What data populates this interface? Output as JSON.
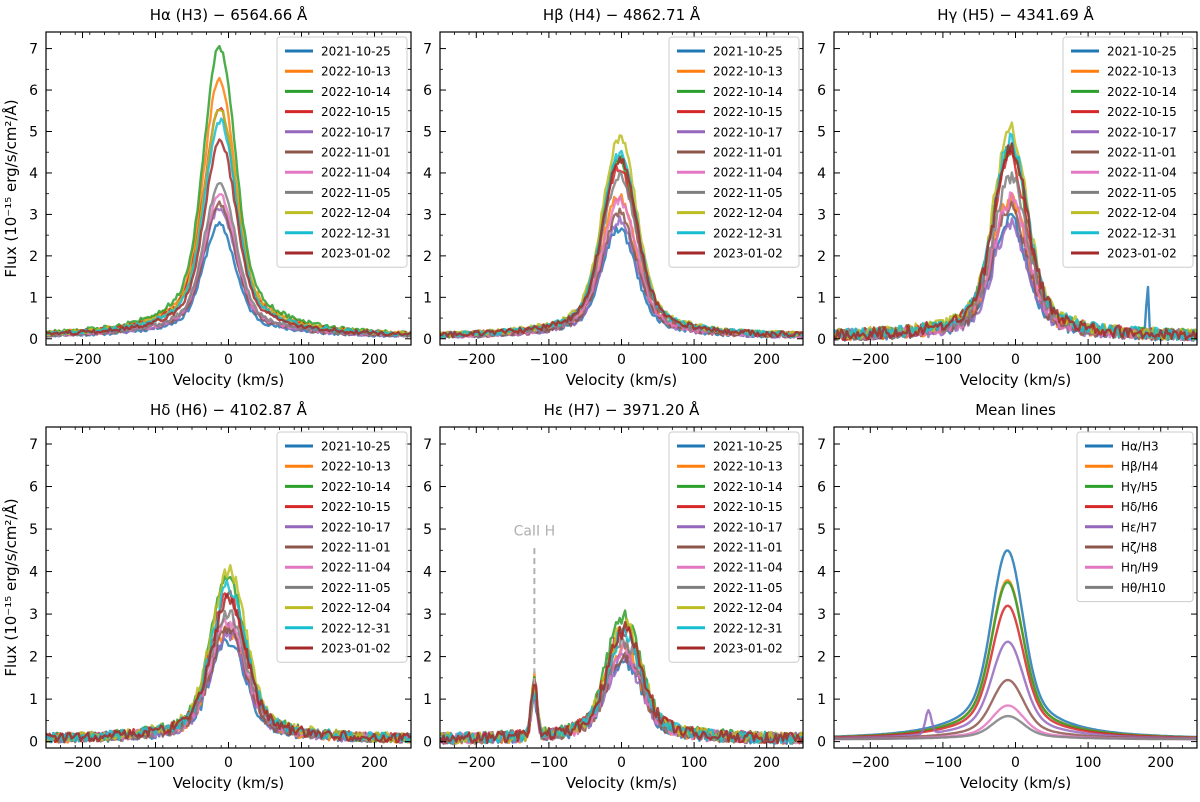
{
  "figure": {
    "xlabel": "Velocity (km/s)",
    "ylabel": "Flux (10⁻¹⁵ erg/s/cm²/Å)"
  },
  "colors": [
    "#1f77b4",
    "#ff7f0e",
    "#2ca02c",
    "#d62728",
    "#9467bd",
    "#8c564b",
    "#e377c2",
    "#7f7f7f",
    "#bcbd22",
    "#17becf",
    "#a52a2a"
  ],
  "chart_data": [
    {
      "type": "line",
      "title": "Hα (H3) − 6564.66 Å",
      "xlim": [
        -250,
        250
      ],
      "ylim": [
        -0.15,
        7.4
      ],
      "xticks": [
        -200,
        -100,
        0,
        100,
        200
      ],
      "yticks": [
        0,
        1,
        2,
        3,
        4,
        5,
        6,
        7
      ],
      "legend": "top-right",
      "legend_labels": [
        "2021-10-25",
        "2022-10-13",
        "2022-10-14",
        "2022-10-15",
        "2022-10-17",
        "2022-11-01",
        "2022-11-04",
        "2022-11-05",
        "2022-12-04",
        "2022-12-31",
        "2023-01-02"
      ],
      "profile": {
        "center": -10,
        "core_width": 20,
        "wing_width": 60,
        "wing_frac": 0.25,
        "noise": 0.04
      },
      "peaks": [
        2.7,
        6.2,
        7.0,
        5.5,
        3.1,
        3.2,
        3.4,
        3.7,
        5.5,
        5.2,
        4.7
      ],
      "series_names": [
        "2021-10-25",
        "2022-10-13",
        "2022-10-14",
        "2022-10-15",
        "2022-10-17",
        "2022-11-01",
        "2022-11-04",
        "2022-11-05",
        "2022-12-04",
        "2022-12-31",
        "2023-01-02"
      ]
    },
    {
      "type": "line",
      "title": "Hβ (H4) − 4862.71 Å",
      "xlim": [
        -250,
        250
      ],
      "ylim": [
        -0.15,
        7.4
      ],
      "xticks": [
        -200,
        -100,
        0,
        100,
        200
      ],
      "yticks": [
        0,
        1,
        2,
        3,
        4,
        5,
        6,
        7
      ],
      "legend": "top-right",
      "legend_labels": [
        "2021-10-25",
        "2022-10-13",
        "2022-10-14",
        "2022-10-15",
        "2022-10-17",
        "2022-11-01",
        "2022-11-04",
        "2022-11-05",
        "2022-12-04",
        "2022-12-31",
        "2023-01-02"
      ],
      "profile": {
        "center": -5,
        "core_width": 22,
        "wing_width": 55,
        "wing_frac": 0.25,
        "noise": 0.06
      },
      "peaks": [
        2.6,
        3.4,
        4.3,
        4.1,
        2.8,
        3.0,
        3.3,
        3.9,
        4.8,
        4.4,
        4.3
      ],
      "series_names": [
        "2021-10-25",
        "2022-10-13",
        "2022-10-14",
        "2022-10-15",
        "2022-10-17",
        "2022-11-01",
        "2022-11-04",
        "2022-11-05",
        "2022-12-04",
        "2022-12-31",
        "2023-01-02"
      ]
    },
    {
      "type": "line",
      "title": "Hγ (H5) − 4341.69 Å",
      "xlim": [
        -250,
        250
      ],
      "ylim": [
        -0.15,
        7.4
      ],
      "xticks": [
        -200,
        -100,
        0,
        100,
        200
      ],
      "yticks": [
        0,
        1,
        2,
        3,
        4,
        5,
        6,
        7
      ],
      "legend": "top-right",
      "legend_labels": [
        "2021-10-25",
        "2022-10-13",
        "2022-10-14",
        "2022-10-15",
        "2022-10-17",
        "2022-11-01",
        "2022-11-04",
        "2022-11-05",
        "2022-12-04",
        "2022-12-31",
        "2023-01-02"
      ],
      "profile": {
        "center": -3,
        "core_width": 22,
        "wing_width": 55,
        "wing_frac": 0.25,
        "noise": 0.12
      },
      "peaks": [
        2.8,
        3.3,
        4.5,
        4.3,
        2.7,
        3.1,
        3.3,
        3.8,
        5.0,
        4.7,
        4.5
      ],
      "series_names": [
        "2021-10-25",
        "2022-10-13",
        "2022-10-14",
        "2022-10-15",
        "2022-10-17",
        "2022-11-01",
        "2022-11-04",
        "2022-11-05",
        "2022-12-04",
        "2022-12-31",
        "2023-01-02"
      ],
      "spike": {
        "series": 0,
        "x": 182,
        "y": 1.35
      }
    },
    {
      "type": "line",
      "title": "Hδ (H6) − 4102.87 Å",
      "xlim": [
        -250,
        250
      ],
      "ylim": [
        -0.15,
        7.4
      ],
      "xticks": [
        -200,
        -100,
        0,
        100,
        200
      ],
      "yticks": [
        0,
        1,
        2,
        3,
        4,
        5,
        6,
        7
      ],
      "legend": "top-right",
      "legend_labels": [
        "2021-10-25",
        "2022-10-13",
        "2022-10-14",
        "2022-10-15",
        "2022-10-17",
        "2022-11-01",
        "2022-11-04",
        "2022-11-05",
        "2022-12-04",
        "2022-12-31",
        "2023-01-02"
      ],
      "profile": {
        "center": 0,
        "core_width": 22,
        "wing_width": 55,
        "wing_frac": 0.25,
        "noise": 0.1
      },
      "peaks": [
        2.3,
        2.6,
        3.8,
        3.4,
        2.5,
        2.6,
        2.8,
        3.0,
        4.0,
        3.6,
        3.3
      ],
      "series_names": [
        "2021-10-25",
        "2022-10-13",
        "2022-10-14",
        "2022-10-15",
        "2022-10-17",
        "2022-11-01",
        "2022-11-04",
        "2022-11-05",
        "2022-12-04",
        "2022-12-31",
        "2023-01-02"
      ]
    },
    {
      "type": "line",
      "title": "Hε (H7) − 3971.20 Å",
      "xlim": [
        -250,
        250
      ],
      "ylim": [
        -0.15,
        7.4
      ],
      "xticks": [
        -200,
        -100,
        0,
        100,
        200
      ],
      "yticks": [
        0,
        1,
        2,
        3,
        4,
        5,
        6,
        7
      ],
      "legend": "top-right",
      "legend_labels": [
        "2021-10-25",
        "2022-10-13",
        "2022-10-14",
        "2022-10-15",
        "2022-10-17",
        "2022-11-01",
        "2022-11-04",
        "2022-11-05",
        "2022-12-04",
        "2022-12-31",
        "2023-01-02"
      ],
      "profile": {
        "center": 0,
        "core_width": 22,
        "wing_width": 55,
        "wing_frac": 0.25,
        "noise": 0.12
      },
      "peaks": [
        1.9,
        2.1,
        2.9,
        2.6,
        1.9,
        2.0,
        2.1,
        2.3,
        2.7,
        2.5,
        2.6
      ],
      "series_names": [
        "2021-10-25",
        "2022-10-13",
        "2022-10-14",
        "2022-10-15",
        "2022-10-17",
        "2022-11-01",
        "2022-11-04",
        "2022-11-05",
        "2022-12-04",
        "2022-12-31",
        "2023-01-02"
      ],
      "caII": {
        "x": -120,
        "height": 1.2,
        "width": 4
      },
      "annotation": {
        "text": "CaII H",
        "x": -120,
        "y_text": 4.85,
        "y_line_top": 4.55,
        "y_line_bottom": 1.3
      }
    },
    {
      "type": "line",
      "title": "Mean lines",
      "xlim": [
        -250,
        250
      ],
      "ylim": [
        -0.15,
        7.4
      ],
      "xticks": [
        -200,
        -100,
        0,
        100,
        200
      ],
      "yticks": [
        0,
        1,
        2,
        3,
        4,
        5,
        6,
        7
      ],
      "legend": "top-right",
      "legend_labels": [
        "Hα/H3",
        "Hβ/H4",
        "Hγ/H5",
        "Hδ/H6",
        "Hε/H7",
        "Hζ/H8",
        "Hη/H9",
        "Hθ/H10"
      ],
      "profile": {
        "center": -8,
        "core_width": 20,
        "wing_width": 58,
        "wing_frac": 0.28,
        "noise": 0.0
      },
      "peaks": [
        4.45,
        3.75,
        3.7,
        3.15,
        2.3,
        1.4,
        0.8,
        0.55
      ],
      "series_names": [
        "Hα/H3",
        "Hβ/H4",
        "Hγ/H5",
        "Hδ/H6",
        "Hε/H7",
        "Hζ/H8",
        "Hη/H9",
        "Hθ/H10"
      ],
      "caII_series": 4,
      "caII": {
        "x": -120,
        "height": 0.55,
        "width": 4
      }
    }
  ]
}
